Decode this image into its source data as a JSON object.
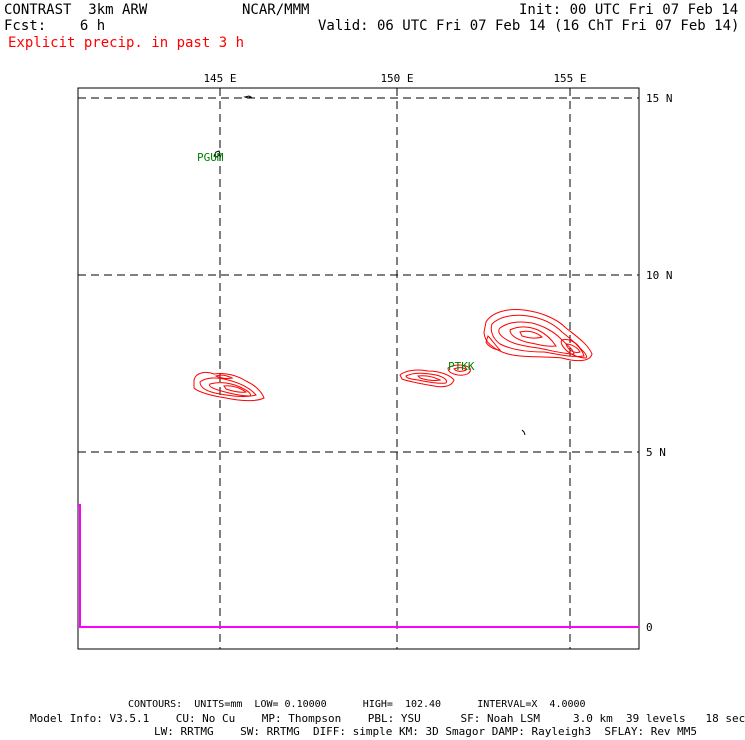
{
  "header": {
    "model": "CONTRAST  3km ARW",
    "org": "NCAR/MMM",
    "init": "Init: 00 UTC Fri 07 Feb 14",
    "fcst": "Fcst:    6 h",
    "valid": "Valid: 06 UTC Fri 07 Feb 14 (16 ChT Fri 07 Feb 14)",
    "field": "Explicit precip. in past 3 h"
  },
  "map": {
    "lon_labels": [
      "145 E",
      "150 E",
      "155 E"
    ],
    "lat_labels": [
      "15 N",
      "10 N",
      "5 N"
    ],
    "strip_label": "0",
    "stations": [
      {
        "id": "PGUM",
        "lon": 144.8,
        "lat": 13.5
      },
      {
        "id": "PTKK",
        "lon": 151.8,
        "lat": 7.4
      }
    ],
    "colors": {
      "contour": "#ff0000",
      "station": "#008000",
      "strip": "#ff00ff",
      "grid": "#000000"
    }
  },
  "footer": {
    "contours": "CONTOURS:  UNITS=mm  LOW= 0.10000      HIGH=  102.40      INTERVAL=X  4.0000",
    "model_info_1": "Model Info: V3.5.1    CU: No Cu    MP: Thompson    PBL: YSU      SF: Noah LSM     3.0 km  39 levels   18 sec",
    "model_info_2": "LW: RRTMG    SW: RRTMG  DIFF: simple KM: 3D Smagor DAMP: Rayleigh3  SFLAY: Rev MM5"
  }
}
